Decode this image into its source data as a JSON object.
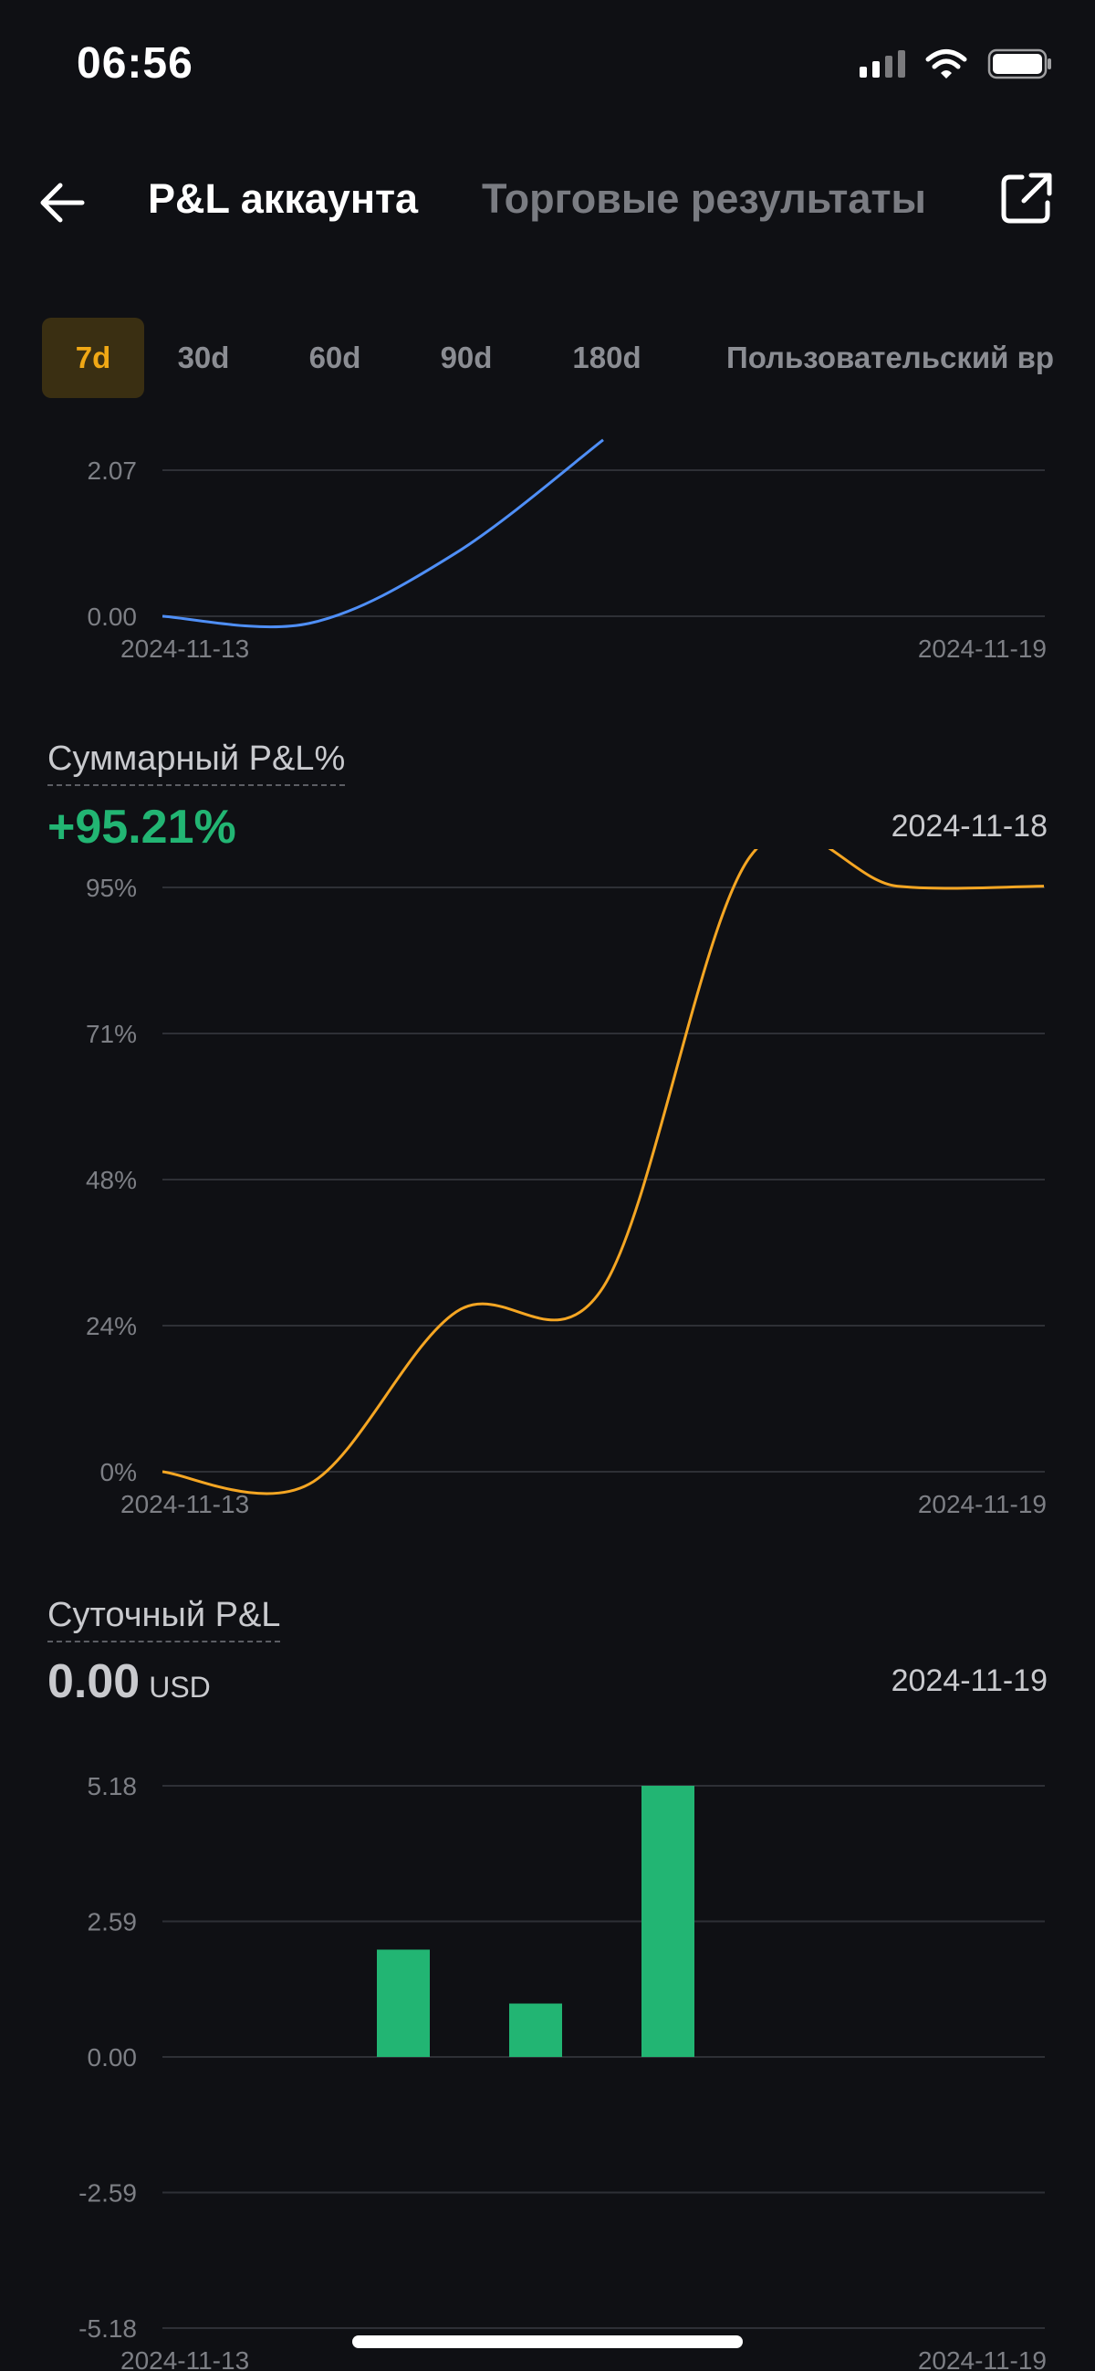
{
  "status_bar": {
    "time": "06:56"
  },
  "header": {
    "tab_account": "P&L аккаунта",
    "tab_trading": "Торговые результаты"
  },
  "ranges": {
    "selected": "7d",
    "items": [
      "7d",
      "30d",
      "60d",
      "90d",
      "180d",
      "Пользовательский вр"
    ]
  },
  "colors": {
    "background": "#0f1014",
    "accent": "#f0a815",
    "positive": "#22b573",
    "line_blue": "#4f8ff7",
    "line_orange": "#f5a623"
  },
  "cumulative_pnl": {
    "title": "Суммарный P&L%",
    "value": "+95.21%",
    "date": "2024-11-18"
  },
  "daily_pnl": {
    "title": "Суточный P&L",
    "value": "0.00",
    "unit": "USD",
    "date": "2024-11-19"
  },
  "chart_data": [
    {
      "type": "line",
      "x": [
        "2024-11-13",
        "2024-11-14",
        "2024-11-15",
        "2024-11-16"
      ],
      "values": [
        0.0,
        -0.1,
        0.9,
        2.5
      ],
      "y_ticks": [
        "0.00",
        "2.07"
      ],
      "x_tick_labels": [
        "2024-11-13",
        "2024-11-19"
      ],
      "ylim": [
        0,
        2.07
      ],
      "grid": true
    },
    {
      "type": "line",
      "x": [
        "2024-11-13",
        "2024-11-14",
        "2024-11-15",
        "2024-11-16",
        "2024-11-17",
        "2024-11-18",
        "2024-11-19"
      ],
      "values": [
        0,
        -2,
        26,
        30,
        100,
        95.21,
        95.21
      ],
      "y_ticks": [
        "0%",
        "24%",
        "48%",
        "71%",
        "95%"
      ],
      "x_tick_labels": [
        "2024-11-13",
        "2024-11-19"
      ],
      "ylim": [
        0,
        95
      ],
      "grid": true
    },
    {
      "type": "bar",
      "categories": [
        "2024-11-13",
        "2024-11-14",
        "2024-11-15",
        "2024-11-16",
        "2024-11-17",
        "2024-11-18",
        "2024-11-19"
      ],
      "values": [
        0,
        0,
        2.05,
        1.02,
        5.18,
        0,
        0
      ],
      "y_ticks": [
        "-5.18",
        "-2.59",
        "0.00",
        "2.59",
        "5.18"
      ],
      "x_tick_labels": [
        "2024-11-13",
        "2024-11-19"
      ],
      "ylim": [
        -5.18,
        5.18
      ],
      "grid": true
    }
  ]
}
